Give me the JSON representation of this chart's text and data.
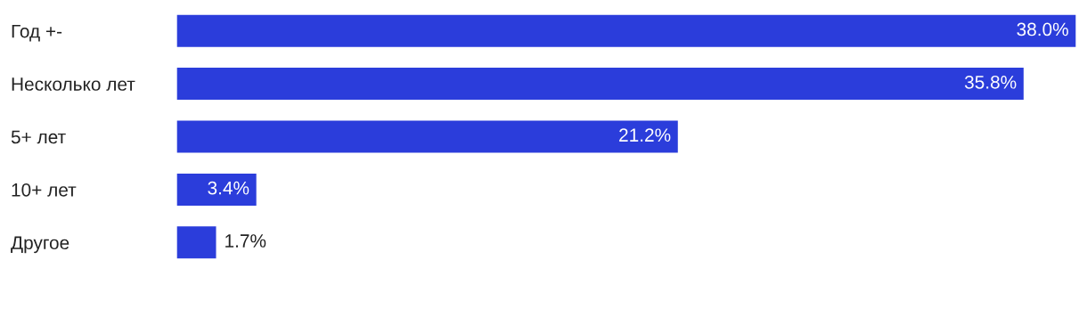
{
  "chart_data": {
    "type": "bar",
    "orientation": "horizontal",
    "categories": [
      "Год +-",
      "Несколько лет",
      "5+ лет",
      "10+ лет",
      "Другое"
    ],
    "values": [
      38.0,
      35.8,
      21.2,
      3.4,
      1.7
    ],
    "value_labels": [
      "38.0%",
      "35.8%",
      "21.2%",
      "3.4%",
      "1.7%"
    ],
    "color": "#2b3ddb",
    "grid": false,
    "legend": false
  }
}
